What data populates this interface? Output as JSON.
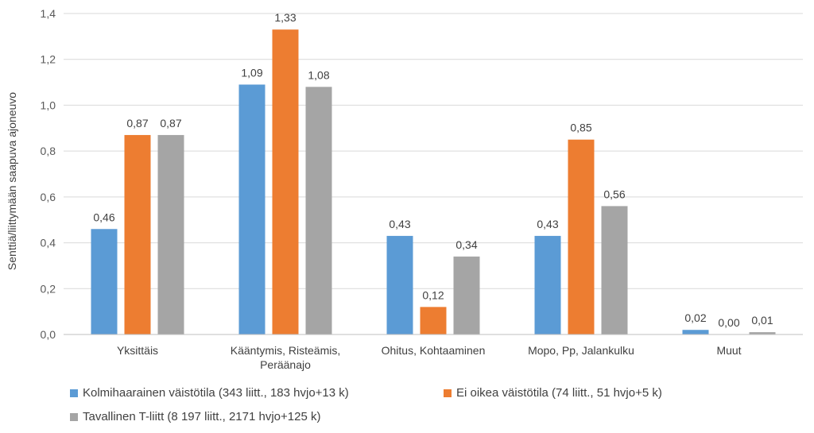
{
  "chart_data": {
    "type": "bar",
    "ylabel": "Senttiä/liittymään saapuva ajoneuvo",
    "ylim": [
      0,
      1.4
    ],
    "yticks": [
      "0,0",
      "0,2",
      "0,4",
      "0,6",
      "0,8",
      "1,0",
      "1,2",
      "1,4"
    ],
    "ytick_values": [
      0,
      0.2,
      0.4,
      0.6,
      0.8,
      1.0,
      1.2,
      1.4
    ],
    "categories": [
      [
        "Yksittäis"
      ],
      [
        "Kääntymis, Risteämis,",
        "Peräänajo"
      ],
      [
        "Ohitus, Kohtaaminen"
      ],
      [
        "Mopo, Pp, Jalankulku"
      ],
      [
        "Muut"
      ]
    ],
    "series": [
      {
        "name": "Kolmihaarainen väistötila (343 liitt., 183 hvjo+13 k)",
        "color": "#5B9BD5",
        "values": [
          0.46,
          1.09,
          0.43,
          0.43,
          0.02
        ],
        "labels": [
          "0,46",
          "1,09",
          "0,43",
          "0,43",
          "0,02"
        ]
      },
      {
        "name": "Ei oikea väistötila (74 liitt., 51 hvjo+5 k)",
        "color": "#ED7D31",
        "values": [
          0.87,
          1.33,
          0.12,
          0.85,
          0.0
        ],
        "labels": [
          "0,87",
          "1,33",
          "0,12",
          "0,85",
          "0,00"
        ]
      },
      {
        "name": "Tavallinen T-liitt (8 197 liitt., 2171 hvjo+125 k)",
        "color": "#A5A5A5",
        "values": [
          0.87,
          1.08,
          0.34,
          0.56,
          0.01
        ],
        "labels": [
          "0,87",
          "1,08",
          "0,34",
          "0,56",
          "0,01"
        ]
      }
    ],
    "grid": true,
    "legend_position": "bottom"
  }
}
